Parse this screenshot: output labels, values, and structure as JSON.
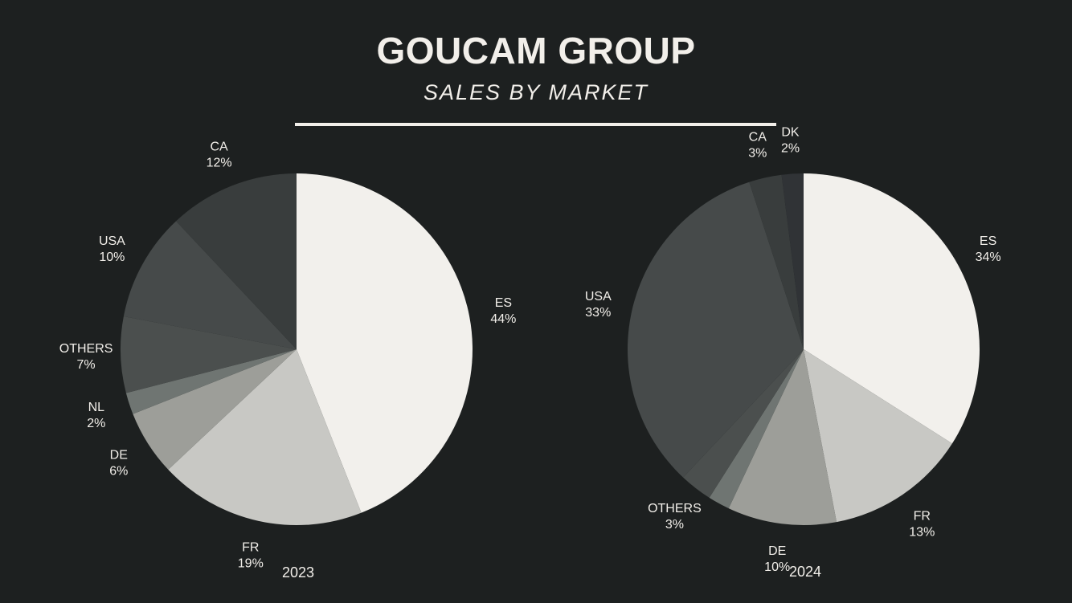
{
  "header": {
    "title": "GOUCAM GROUP",
    "subtitle": "SALES BY MARKET"
  },
  "chart_data": [
    {
      "type": "pie",
      "title": "2023",
      "slices": [
        {
          "label": "ES",
          "value": 44,
          "color": "#f2f0ec"
        },
        {
          "label": "FR",
          "value": 19,
          "color": "#c8c8c4"
        },
        {
          "label": "DE",
          "value": 6,
          "color": "#9d9e99"
        },
        {
          "label": "NL",
          "value": 2,
          "color": "#6f7572"
        },
        {
          "label": "OTHERS",
          "value": 7,
          "color": "#4b4f4e"
        },
        {
          "label": "USA",
          "value": 10,
          "color": "#464a4a"
        },
        {
          "label": "CA",
          "value": 12,
          "color": "#393d3d"
        }
      ]
    },
    {
      "type": "pie",
      "title": "2024",
      "slices": [
        {
          "label": "ES",
          "value": 34,
          "color": "#f2f0ec"
        },
        {
          "label": "FR",
          "value": 13,
          "color": "#c8c8c4"
        },
        {
          "label": "DE",
          "value": 10,
          "color": "#9d9e99"
        },
        {
          "label": "",
          "value": 2,
          "color": "#6f7572"
        },
        {
          "label": "OTHERS",
          "value": 3,
          "color": "#4b4f4e"
        },
        {
          "label": "USA",
          "value": 33,
          "color": "#464a4a"
        },
        {
          "label": "CA",
          "value": 3,
          "color": "#393d3d"
        },
        {
          "label": "DK",
          "value": 2,
          "color": "#303336"
        }
      ]
    }
  ]
}
